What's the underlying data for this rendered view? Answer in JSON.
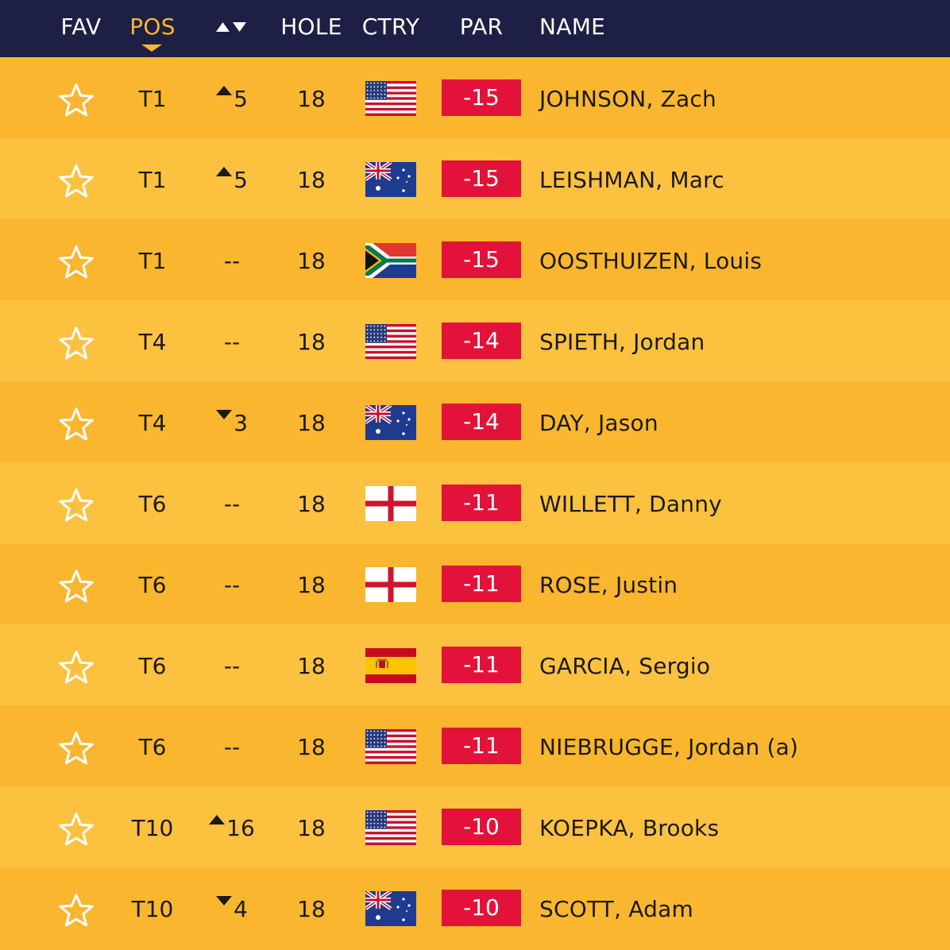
{
  "header": {
    "fav": "FAV",
    "pos": "POS",
    "hole": "HOLE",
    "ctry": "CTRY",
    "par": "PAR",
    "name": "NAME",
    "active_sort": "POS"
  },
  "colors": {
    "header_bg": "#1d1f44",
    "accent": "#fbb62f",
    "row_odd": "#fbb62f",
    "row_even": "#fdc140",
    "par_bg": "#e3123a"
  },
  "rows": [
    {
      "pos": "T1",
      "move_dir": "up",
      "move": "5",
      "hole": "18",
      "country": "USA",
      "par": "-15",
      "name": "JOHNSON, Zach"
    },
    {
      "pos": "T1",
      "move_dir": "up",
      "move": "5",
      "hole": "18",
      "country": "AUS",
      "par": "-15",
      "name": "LEISHMAN, Marc"
    },
    {
      "pos": "T1",
      "move_dir": "none",
      "move": "--",
      "hole": "18",
      "country": "RSA",
      "par": "-15",
      "name": "OOSTHUIZEN, Louis"
    },
    {
      "pos": "T4",
      "move_dir": "none",
      "move": "--",
      "hole": "18",
      "country": "USA",
      "par": "-14",
      "name": "SPIETH, Jordan"
    },
    {
      "pos": "T4",
      "move_dir": "down",
      "move": "3",
      "hole": "18",
      "country": "AUS",
      "par": "-14",
      "name": "DAY, Jason"
    },
    {
      "pos": "T6",
      "move_dir": "none",
      "move": "--",
      "hole": "18",
      "country": "ENG",
      "par": "-11",
      "name": "WILLETT, Danny"
    },
    {
      "pos": "T6",
      "move_dir": "none",
      "move": "--",
      "hole": "18",
      "country": "ENG",
      "par": "-11",
      "name": "ROSE, Justin"
    },
    {
      "pos": "T6",
      "move_dir": "none",
      "move": "--",
      "hole": "18",
      "country": "ESP",
      "par": "-11",
      "name": "GARCIA, Sergio"
    },
    {
      "pos": "T6",
      "move_dir": "none",
      "move": "--",
      "hole": "18",
      "country": "USA",
      "par": "-11",
      "name": "NIEBRUGGE, Jordan (a)"
    },
    {
      "pos": "T10",
      "move_dir": "up",
      "move": "16",
      "hole": "18",
      "country": "USA",
      "par": "-10",
      "name": "KOEPKA, Brooks"
    },
    {
      "pos": "T10",
      "move_dir": "down",
      "move": "4",
      "hole": "18",
      "country": "AUS",
      "par": "-10",
      "name": "SCOTT, Adam"
    }
  ]
}
